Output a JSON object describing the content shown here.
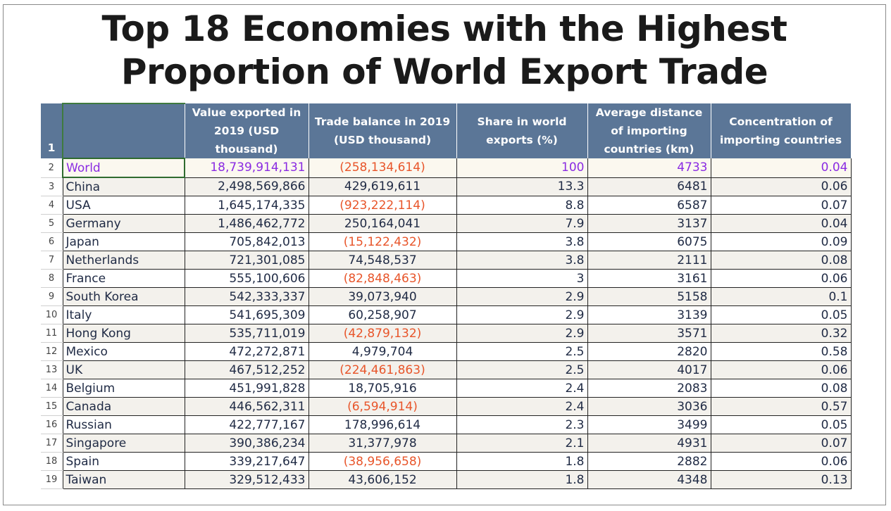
{
  "title_line1": "Top 18 Economies with the Highest",
  "title_line2": "Proportion of World Export Trade",
  "header_row_number": "1",
  "columns": [
    "Value exported in 2019 (USD thousand)",
    "Trade balance in 2019 (USD thousand)",
    "Share in world exports (%)",
    "Average distance of importing countries (km)",
    "Concentration of importing countries"
  ],
  "rows": [
    {
      "n": "2",
      "name": "World",
      "value": "18,739,914,131",
      "balance": "(258,134,614)",
      "share": "100",
      "distance": "4733",
      "concentration": "0.04"
    },
    {
      "n": "3",
      "name": "China",
      "value": "2,498,569,866",
      "balance": "429,619,611",
      "share": "13.3",
      "distance": "6481",
      "concentration": "0.06"
    },
    {
      "n": "4",
      "name": "USA",
      "value": "1,645,174,335",
      "balance": "(923,222,114)",
      "share": "8.8",
      "distance": "6587",
      "concentration": "0.07"
    },
    {
      "n": "5",
      "name": "Germany",
      "value": "1,486,462,772",
      "balance": "250,164,041",
      "share": "7.9",
      "distance": "3137",
      "concentration": "0.04"
    },
    {
      "n": "6",
      "name": "Japan",
      "value": "705,842,013",
      "balance": "(15,122,432)",
      "share": "3.8",
      "distance": "6075",
      "concentration": "0.09"
    },
    {
      "n": "7",
      "name": "Netherlands",
      "value": "721,301,085",
      "balance": "74,548,537",
      "share": "3.8",
      "distance": "2111",
      "concentration": "0.08"
    },
    {
      "n": "8",
      "name": "France",
      "value": "555,100,606",
      "balance": "(82,848,463)",
      "share": "3",
      "distance": "3161",
      "concentration": "0.06"
    },
    {
      "n": "9",
      "name": "South Korea",
      "value": "542,333,337",
      "balance": "39,073,940",
      "share": "2.9",
      "distance": "5158",
      "concentration": "0.1"
    },
    {
      "n": "10",
      "name": "Italy",
      "value": "541,695,309",
      "balance": "60,258,907",
      "share": "2.9",
      "distance": "3139",
      "concentration": "0.05"
    },
    {
      "n": "11",
      "name": "Hong Kong",
      "value": "535,711,019",
      "balance": "(42,879,132)",
      "share": "2.9",
      "distance": "3571",
      "concentration": "0.32"
    },
    {
      "n": "12",
      "name": "Mexico",
      "value": "472,272,871",
      "balance": "4,979,704",
      "share": "2.5",
      "distance": "2820",
      "concentration": "0.58"
    },
    {
      "n": "13",
      "name": "UK",
      "value": "467,512,252",
      "balance": "(224,461,863)",
      "share": "2.5",
      "distance": "4017",
      "concentration": "0.06"
    },
    {
      "n": "14",
      "name": "Belgium",
      "value": "451,991,828",
      "balance": "18,705,916",
      "share": "2.4",
      "distance": "2083",
      "concentration": "0.08"
    },
    {
      "n": "15",
      "name": "Canada",
      "value": "446,562,311",
      "balance": "(6,594,914)",
      "share": "2.4",
      "distance": "3036",
      "concentration": "0.57"
    },
    {
      "n": "16",
      "name": "Russian",
      "value": "422,777,167",
      "balance": "178,996,614",
      "share": "2.3",
      "distance": "3499",
      "concentration": "0.05"
    },
    {
      "n": "17",
      "name": "Singapore",
      "value": "390,386,234",
      "balance": "31,377,978",
      "share": "2.1",
      "distance": "4931",
      "concentration": "0.07"
    },
    {
      "n": "18",
      "name": "Spain",
      "value": "339,217,647",
      "balance": "(38,956,658)",
      "share": "1.8",
      "distance": "2882",
      "concentration": "0.06"
    },
    {
      "n": "19",
      "name": "Taiwan",
      "value": "329,512,433",
      "balance": "43,606,152",
      "share": "1.8",
      "distance": "4348",
      "concentration": "0.13"
    }
  ],
  "colors": {
    "header_bg": "#5b7697",
    "negative_text": "#e8552a",
    "world_text": "#8a2be2",
    "body_text": "#1f2a44"
  }
}
